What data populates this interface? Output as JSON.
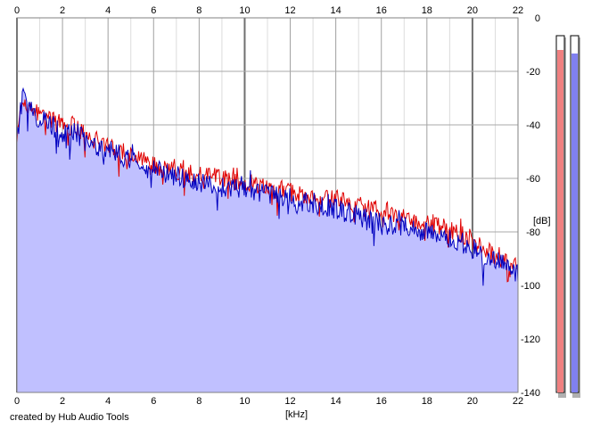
{
  "chart_data": {
    "type": "line",
    "xlabel": "[kHz]",
    "ylabel": "[dB]",
    "xlim": [
      0,
      22
    ],
    "ylim": [
      -140,
      0
    ],
    "x_ticks": [
      "0",
      "2",
      "4",
      "6",
      "8",
      "10",
      "12",
      "14",
      "16",
      "18",
      "20",
      "22"
    ],
    "y_ticks": [
      "0",
      "-20",
      "-40",
      "-60",
      "-80",
      "-100",
      "-120",
      "-140"
    ],
    "grid": true,
    "series": [
      {
        "color": "#e00000",
        "x": [
          0,
          0.25,
          0.5,
          1,
          1.5,
          2,
          2.5,
          3,
          3.5,
          4,
          4.5,
          5,
          5.5,
          6,
          6.5,
          7,
          7.5,
          8,
          8.5,
          9,
          9.5,
          10,
          10.5,
          11,
          11.5,
          12,
          12.5,
          13,
          13.5,
          14,
          14.5,
          15,
          15.5,
          16,
          16.5,
          17,
          17.5,
          18,
          18.5,
          19,
          19.5,
          20,
          20.5,
          21,
          21.5,
          22
        ],
        "values": [
          -45,
          -30,
          -33,
          -36,
          -38,
          -41,
          -40,
          -44,
          -46,
          -47,
          -49,
          -51,
          -53,
          -55,
          -56,
          -57,
          -58,
          -59,
          -59,
          -60,
          -61,
          -62,
          -62,
          -64,
          -64,
          -65,
          -66,
          -66,
          -68,
          -67,
          -69,
          -70,
          -72,
          -71,
          -73,
          -74,
          -76,
          -77,
          -78,
          -79,
          -81,
          -83,
          -86,
          -89,
          -91,
          -93
        ]
      },
      {
        "color": "#0000c0",
        "fill": "#c0c0ff",
        "x": [
          0,
          0.25,
          0.5,
          1,
          1.5,
          2,
          2.5,
          3,
          3.5,
          4,
          4.5,
          5,
          5.5,
          6,
          6.5,
          7,
          7.5,
          8,
          8.5,
          9,
          9.5,
          10,
          10.5,
          11,
          11.5,
          12,
          12.5,
          13,
          13.5,
          14,
          14.5,
          15,
          15.5,
          16,
          16.5,
          17,
          17.5,
          18,
          18.5,
          19,
          19.5,
          20,
          20.5,
          21,
          21.5,
          22
        ],
        "values": [
          -47,
          -28,
          -34,
          -38,
          -40,
          -43,
          -42,
          -46,
          -48,
          -49,
          -51,
          -53,
          -55,
          -57,
          -58,
          -59,
          -61,
          -62,
          -63,
          -63,
          -64,
          -64,
          -65,
          -66,
          -67,
          -68,
          -69,
          -69,
          -71,
          -71,
          -73,
          -74,
          -75,
          -76,
          -77,
          -78,
          -79,
          -80,
          -81,
          -82,
          -84,
          -86,
          -89,
          -91,
          -93,
          -95
        ]
      }
    ],
    "level_meters": [
      {
        "color": "#f08080",
        "level": 0.96
      },
      {
        "color": "#8080f0",
        "level": 0.95
      }
    ]
  },
  "footer": {
    "credit": "created by Hub Audio Tools"
  }
}
